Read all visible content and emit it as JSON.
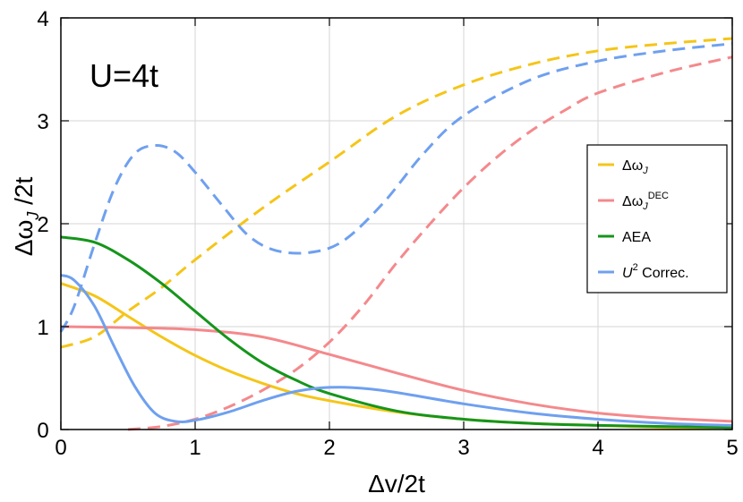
{
  "chart_data": {
    "type": "line",
    "title": "",
    "annotation": "U=4t",
    "xlabel": "Δv/2t",
    "ylabel_base": "Δω",
    "ylabel_sub": "J",
    "ylabel_tail": " /2t",
    "xlim": [
      0,
      5
    ],
    "ylim": [
      0,
      4
    ],
    "xticks": [
      0,
      1,
      2,
      3,
      4,
      5
    ],
    "yticks": [
      0,
      1,
      2,
      3,
      4
    ],
    "grid": true,
    "legend_position": "right",
    "legend": [
      {
        "key": "dw",
        "base": "Δω",
        "sub": "J",
        "sup": "",
        "tail": "",
        "color": "#f5c518"
      },
      {
        "key": "dec",
        "base": "Δω",
        "sub": "J",
        "sup": "DEC",
        "tail": "",
        "color": "#f4898c"
      },
      {
        "key": "aea",
        "base": "AEA",
        "sub": "",
        "sup": "",
        "tail": "",
        "color": "#15951b"
      },
      {
        "key": "u2",
        "base": "U",
        "sub": "",
        "sup": "2",
        "tail": " Correc.",
        "color": "#6fa0ef"
      }
    ],
    "series": [
      {
        "name": "Δω_J (solid)",
        "legend_key": "dw",
        "style": "solid",
        "x": [
          0,
          0.25,
          0.5,
          0.75,
          1,
          1.25,
          1.5,
          1.75,
          2,
          2.5,
          3,
          3.5,
          4,
          4.5,
          5
        ],
        "y": [
          1.42,
          1.3,
          1.1,
          0.9,
          0.72,
          0.57,
          0.45,
          0.35,
          0.28,
          0.17,
          0.1,
          0.06,
          0.04,
          0.02,
          0.02
        ]
      },
      {
        "name": "Δω_J (dashed)",
        "legend_key": "dw",
        "style": "dashed",
        "x": [
          0,
          0.25,
          0.5,
          0.75,
          1,
          1.5,
          2,
          2.5,
          3,
          3.5,
          4,
          4.5,
          5
        ],
        "y": [
          0.8,
          0.9,
          1.15,
          1.38,
          1.65,
          2.15,
          2.6,
          3.05,
          3.35,
          3.55,
          3.68,
          3.75,
          3.8
        ]
      },
      {
        "name": "Δω_J^DEC (solid)",
        "legend_key": "dec",
        "style": "solid",
        "x": [
          0,
          0.5,
          1,
          1.5,
          2,
          2.5,
          3,
          3.5,
          4,
          4.5,
          5
        ],
        "y": [
          1.0,
          0.99,
          0.97,
          0.9,
          0.73,
          0.55,
          0.38,
          0.25,
          0.16,
          0.11,
          0.08
        ]
      },
      {
        "name": "Δω_J^DEC (dashed)",
        "legend_key": "dec",
        "style": "dashed",
        "x": [
          0.5,
          0.75,
          1,
          1.25,
          1.5,
          1.75,
          2,
          2.25,
          2.5,
          2.75,
          3,
          3.25,
          3.5,
          3.75,
          4,
          4.5,
          5
        ],
        "y": [
          0.0,
          0.03,
          0.1,
          0.22,
          0.38,
          0.58,
          0.85,
          1.2,
          1.62,
          2.0,
          2.35,
          2.65,
          2.9,
          3.1,
          3.27,
          3.47,
          3.62
        ]
      },
      {
        "name": "AEA",
        "legend_key": "aea",
        "style": "solid",
        "x": [
          0,
          0.25,
          0.5,
          0.75,
          1,
          1.25,
          1.5,
          1.75,
          2,
          2.5,
          3,
          3.5,
          4,
          4.5,
          5
        ],
        "y": [
          1.87,
          1.82,
          1.65,
          1.42,
          1.15,
          0.88,
          0.65,
          0.48,
          0.35,
          0.18,
          0.1,
          0.06,
          0.04,
          0.03,
          0.02
        ]
      },
      {
        "name": "U² Correc. (solid)",
        "legend_key": "u2",
        "style": "solid",
        "x": [
          0,
          0.1,
          0.25,
          0.4,
          0.55,
          0.7,
          0.85,
          1,
          1.25,
          1.5,
          1.75,
          2,
          2.25,
          2.5,
          3,
          3.5,
          4,
          4.5,
          5
        ],
        "y": [
          1.5,
          1.45,
          1.2,
          0.8,
          0.42,
          0.16,
          0.08,
          0.09,
          0.17,
          0.28,
          0.37,
          0.41,
          0.4,
          0.36,
          0.25,
          0.16,
          0.1,
          0.06,
          0.04
        ]
      },
      {
        "name": "U² Correc. (dashed)",
        "legend_key": "u2",
        "style": "dashed",
        "x": [
          0,
          0.1,
          0.25,
          0.4,
          0.55,
          0.7,
          0.85,
          1,
          1.2,
          1.4,
          1.6,
          1.85,
          2.1,
          2.4,
          2.7,
          3,
          3.5,
          4,
          4.5,
          5
        ],
        "y": [
          0.95,
          1.2,
          1.8,
          2.35,
          2.68,
          2.76,
          2.7,
          2.5,
          2.18,
          1.88,
          1.74,
          1.72,
          1.83,
          2.2,
          2.68,
          3.05,
          3.4,
          3.58,
          3.68,
          3.75
        ]
      }
    ]
  }
}
